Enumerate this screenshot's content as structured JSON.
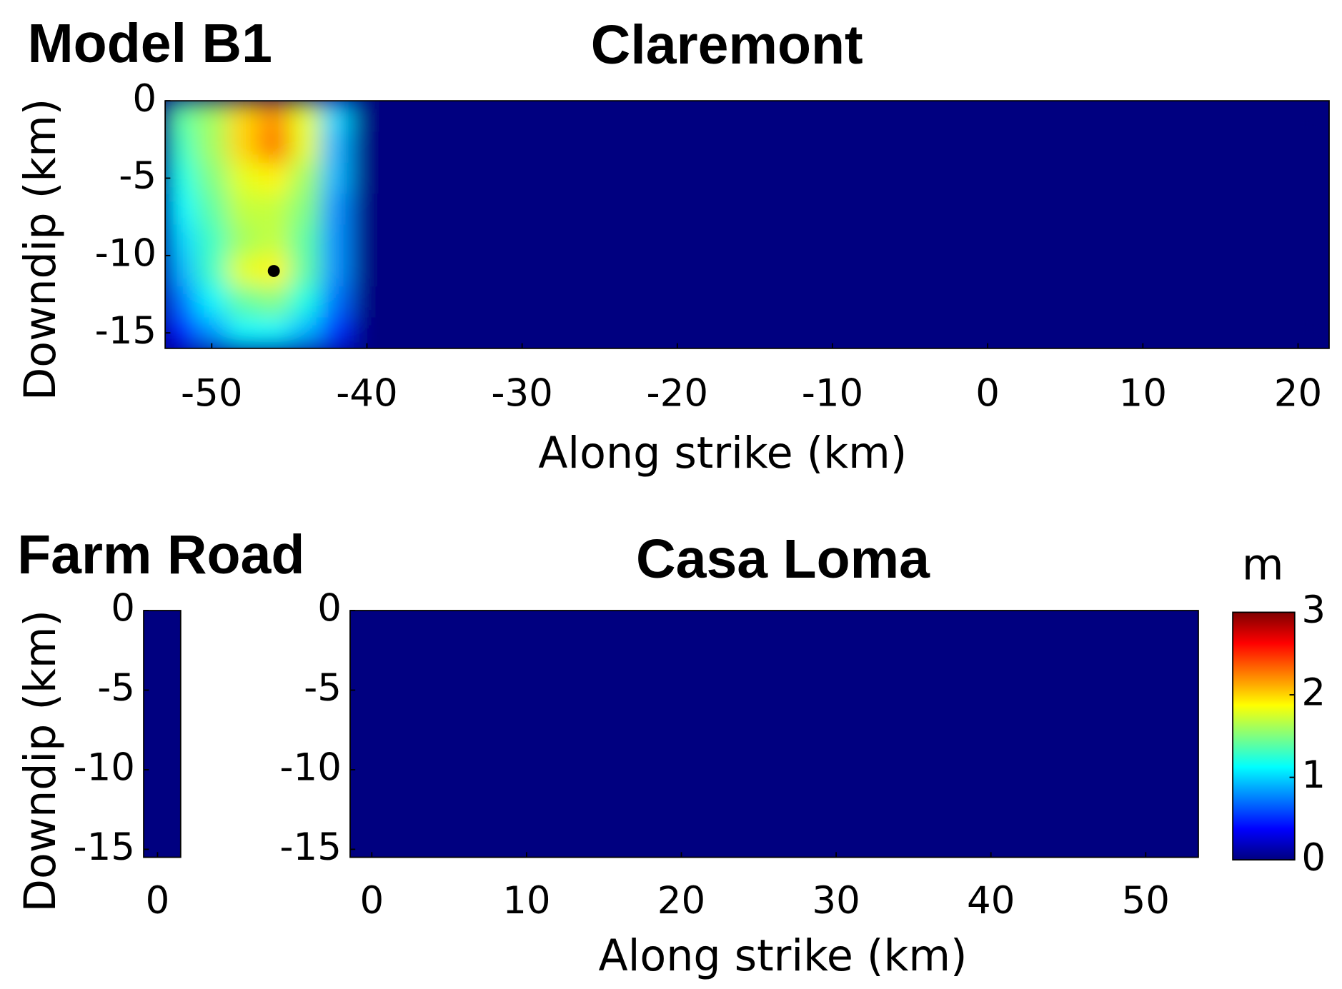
{
  "title": "Model B1",
  "colorbar": {
    "label": "m",
    "colormap": "jet",
    "lim": [
      0,
      3
    ],
    "ticks": [
      0,
      1,
      2,
      3
    ]
  },
  "chart_data": [
    {
      "type": "heatmap",
      "title": "Claremont",
      "xlabel": "Along strike (km)",
      "ylabel": "Downdip (km)",
      "xlim": [
        -53,
        22
      ],
      "ylim": [
        -16,
        0
      ],
      "xticks": [
        -50,
        -40,
        -30,
        -20,
        -10,
        0,
        10,
        20
      ],
      "yticks": [
        0,
        -5,
        -10,
        -15
      ],
      "x_edges": [
        -53,
        -51,
        -49,
        -47,
        -45,
        -43,
        -41,
        -31,
        -21,
        -11,
        -1,
        9,
        22
      ],
      "y_edges": [
        0,
        -2,
        -4,
        -6,
        -8,
        -10,
        -12,
        -14,
        -16
      ],
      "z": [
        [
          1.4,
          1.6,
          2.0,
          2.2,
          1.8,
          1.0,
          0,
          0,
          0,
          0,
          0,
          0
        ],
        [
          1.3,
          1.6,
          2.0,
          2.3,
          1.8,
          0.9,
          0,
          0,
          0,
          0,
          0,
          0
        ],
        [
          1.2,
          1.5,
          1.8,
          1.9,
          1.6,
          0.9,
          0,
          0,
          0,
          0,
          0,
          0
        ],
        [
          1.1,
          1.4,
          1.7,
          1.7,
          1.5,
          0.8,
          0,
          0,
          0,
          0,
          0,
          0
        ],
        [
          1.0,
          1.3,
          1.6,
          1.7,
          1.4,
          0.8,
          0,
          0,
          0,
          0,
          0,
          0
        ],
        [
          0.9,
          1.3,
          1.8,
          1.9,
          1.4,
          0.8,
          0,
          0,
          0,
          0,
          0,
          0
        ],
        [
          0.7,
          1.1,
          1.4,
          1.5,
          1.2,
          0.7,
          0,
          0,
          0,
          0,
          0,
          0
        ],
        [
          0.4,
          0.8,
          1.1,
          1.1,
          0.9,
          0.5,
          0,
          0,
          0,
          0,
          0,
          0
        ]
      ],
      "points": {
        "x": [
          -46
        ],
        "y": [
          -11
        ],
        "color": "#000000"
      }
    },
    {
      "type": "heatmap",
      "title": "Farm Road",
      "ylabel": "Downdip (km)",
      "xlim": [
        -0.9,
        1.5
      ],
      "ylim": [
        -15.5,
        0
      ],
      "xticks": [
        0
      ],
      "yticks": [
        0,
        -5,
        -10,
        -15
      ],
      "x_edges": [
        -0.9,
        1.5
      ],
      "y_edges": [
        0,
        -15.5
      ],
      "z": [
        [
          0
        ]
      ]
    },
    {
      "type": "heatmap",
      "title": "Casa Loma",
      "xlabel": "Along strike (km)",
      "xlim": [
        -1.4,
        53.4
      ],
      "ylim": [
        -15.5,
        0
      ],
      "xticks": [
        0,
        10,
        20,
        30,
        40,
        50
      ],
      "yticks": [
        0,
        -5,
        -10,
        -15
      ],
      "x_edges": [
        -1.4,
        53.4
      ],
      "y_edges": [
        0,
        -15.5
      ],
      "z": [
        [
          0
        ]
      ]
    }
  ]
}
